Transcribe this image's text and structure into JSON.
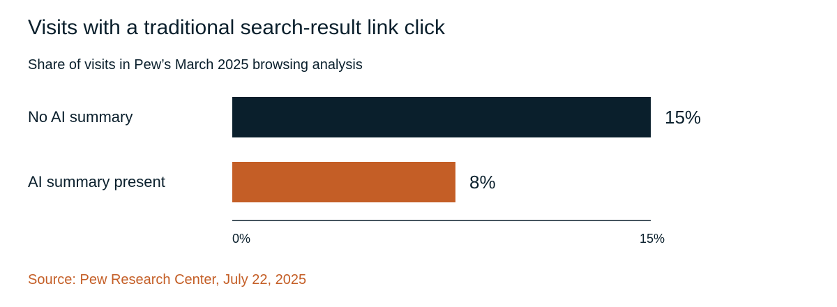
{
  "title": "Visits with a traditional search-result link click",
  "subtitle": "Share of visits in Pew’s March 2025 browsing analysis",
  "source": "Source: Pew Research Center, July 22, 2025",
  "colors": {
    "text": "#0a1f2c",
    "accent": "#c45e26",
    "axis": "#0a1f2c"
  },
  "chart_data": {
    "type": "bar",
    "orientation": "horizontal",
    "categories": [
      "No AI summary",
      "AI summary present"
    ],
    "values": [
      15,
      8
    ],
    "value_labels": [
      "15%",
      "8%"
    ],
    "bar_colors": [
      "#0a1f2c",
      "#c45e26"
    ],
    "xlim": [
      0,
      15
    ],
    "xticks": [
      0,
      15
    ],
    "xtick_labels": [
      "0%",
      "15%"
    ],
    "grid": false,
    "legend": "none"
  }
}
